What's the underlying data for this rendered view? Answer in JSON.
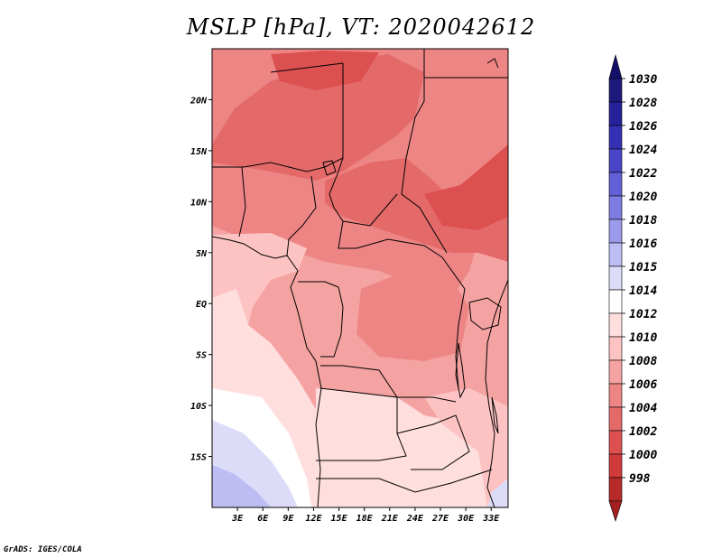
{
  "title": "MSLP [hPa], VT: 2020042612",
  "footer": "GrADS: IGES/COLA",
  "map": {
    "lat_range": [
      -20,
      25
    ],
    "lon_range": [
      0,
      35
    ],
    "lat_ticks": [
      {
        "value": 20,
        "label": "20N"
      },
      {
        "value": 15,
        "label": "15N"
      },
      {
        "value": 10,
        "label": "10N"
      },
      {
        "value": 5,
        "label": "5N"
      },
      {
        "value": 0,
        "label": "EQ"
      },
      {
        "value": -5,
        "label": "5S"
      },
      {
        "value": -10,
        "label": "10S"
      },
      {
        "value": -15,
        "label": "15S"
      }
    ],
    "lon_ticks": [
      {
        "value": 3,
        "label": "3E"
      },
      {
        "value": 6,
        "label": "6E"
      },
      {
        "value": 9,
        "label": "9E"
      },
      {
        "value": 12,
        "label": "12E"
      },
      {
        "value": 15,
        "label": "15E"
      },
      {
        "value": 18,
        "label": "18E"
      },
      {
        "value": 21,
        "label": "21E"
      },
      {
        "value": 24,
        "label": "24E"
      },
      {
        "value": 27,
        "label": "27E"
      },
      {
        "value": 30,
        "label": "30E"
      },
      {
        "value": 33,
        "label": "33E"
      }
    ]
  },
  "legend": {
    "levels": [
      {
        "label": "1030",
        "color": "#1e1a7d"
      },
      {
        "label": "1028",
        "color": "#26219b"
      },
      {
        "label": "1026",
        "color": "#3430b3"
      },
      {
        "label": "1024",
        "color": "#4a45c6"
      },
      {
        "label": "1022",
        "color": "#6260d6"
      },
      {
        "label": "1020",
        "color": "#7e7ce2"
      },
      {
        "label": "1018",
        "color": "#9c9aeb"
      },
      {
        "label": "1016",
        "color": "#bdbcf3"
      },
      {
        "label": "1015",
        "color": "#dcdcf9"
      },
      {
        "label": "1014",
        "color": "#ffffff"
      },
      {
        "label": "1012",
        "color": "#ffdede"
      },
      {
        "label": "1010",
        "color": "#fdc3c3"
      },
      {
        "label": "1008",
        "color": "#f5a2a2"
      },
      {
        "label": "1006",
        "color": "#ee8585"
      },
      {
        "label": "1004",
        "color": "#e46a6a"
      },
      {
        "label": "1002",
        "color": "#dd5050"
      },
      {
        "label": "1000",
        "color": "#d13a3a"
      },
      {
        "label": "998",
        "color": "#b82a2a"
      }
    ],
    "top_arrow_color": "#14106a",
    "bottom_arrow_color": "#a52020"
  }
}
